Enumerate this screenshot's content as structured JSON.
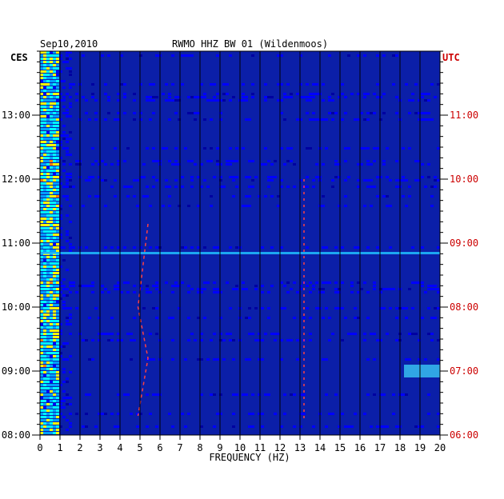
{
  "header": {
    "date": "Sep10,2010",
    "station": "RWMO HHZ BW 01 (Wildenmoos)",
    "left_zone": "CES",
    "right_zone": "UTC"
  },
  "chart_data": {
    "type": "heatmap",
    "title": "RWMO HHZ BW 01 (Wildenmoos)",
    "date": "Sep10,2010",
    "xlabel": "FREQUENCY (HZ)",
    "xlim": [
      0,
      20
    ],
    "x_ticks": [
      "0",
      "1",
      "2",
      "3",
      "4",
      "5",
      "6",
      "7",
      "8",
      "9",
      "10",
      "11",
      "12",
      "13",
      "14",
      "15",
      "16",
      "17",
      "18",
      "19",
      "20"
    ],
    "left_axis": {
      "zone": "CES",
      "range_hours": [
        8.0,
        14.0
      ],
      "ticks": [
        {
          "hour": 13,
          "label": "13:00"
        },
        {
          "hour": 12,
          "label": "12:00"
        },
        {
          "hour": 11,
          "label": "11:00"
        },
        {
          "hour": 10,
          "label": "10:00"
        },
        {
          "hour": 9,
          "label": "09:00"
        },
        {
          "hour": 8,
          "label": "08:00"
        }
      ]
    },
    "right_axis": {
      "zone": "UTC",
      "range_hours": [
        6.0,
        12.0
      ],
      "ticks": [
        {
          "hour": 11,
          "label": "11:00"
        },
        {
          "hour": 10,
          "label": "10:00"
        },
        {
          "hour": 9,
          "label": "09:00"
        },
        {
          "hour": 8,
          "label": "08:00"
        },
        {
          "hour": 7,
          "label": "07:00"
        },
        {
          "hour": 6,
          "label": "06:00"
        }
      ]
    },
    "colormap": [
      "#0000a0",
      "#0000ff",
      "#00a0ff",
      "#00ffff",
      "#ffff00",
      "#ff8000",
      "#ff0000"
    ],
    "background_color": "#0b1fa8",
    "grid": true,
    "features": [
      {
        "name": "microseism band",
        "freq_range": [
          0.1,
          1.0
        ],
        "intensity": "high"
      },
      {
        "name": "spectral line",
        "freq": 13.2,
        "color": "#ff4040"
      },
      {
        "name": "drifting line",
        "freq_range": [
          4.9,
          5.4
        ],
        "color": "#ff4040"
      },
      {
        "name": "broadband event",
        "time_ces": 10.85,
        "freq_range": [
          0,
          20
        ]
      },
      {
        "name": "high-frequency patch",
        "time_ces": 9.0,
        "freq_range": [
          18.2,
          20
        ]
      }
    ]
  }
}
